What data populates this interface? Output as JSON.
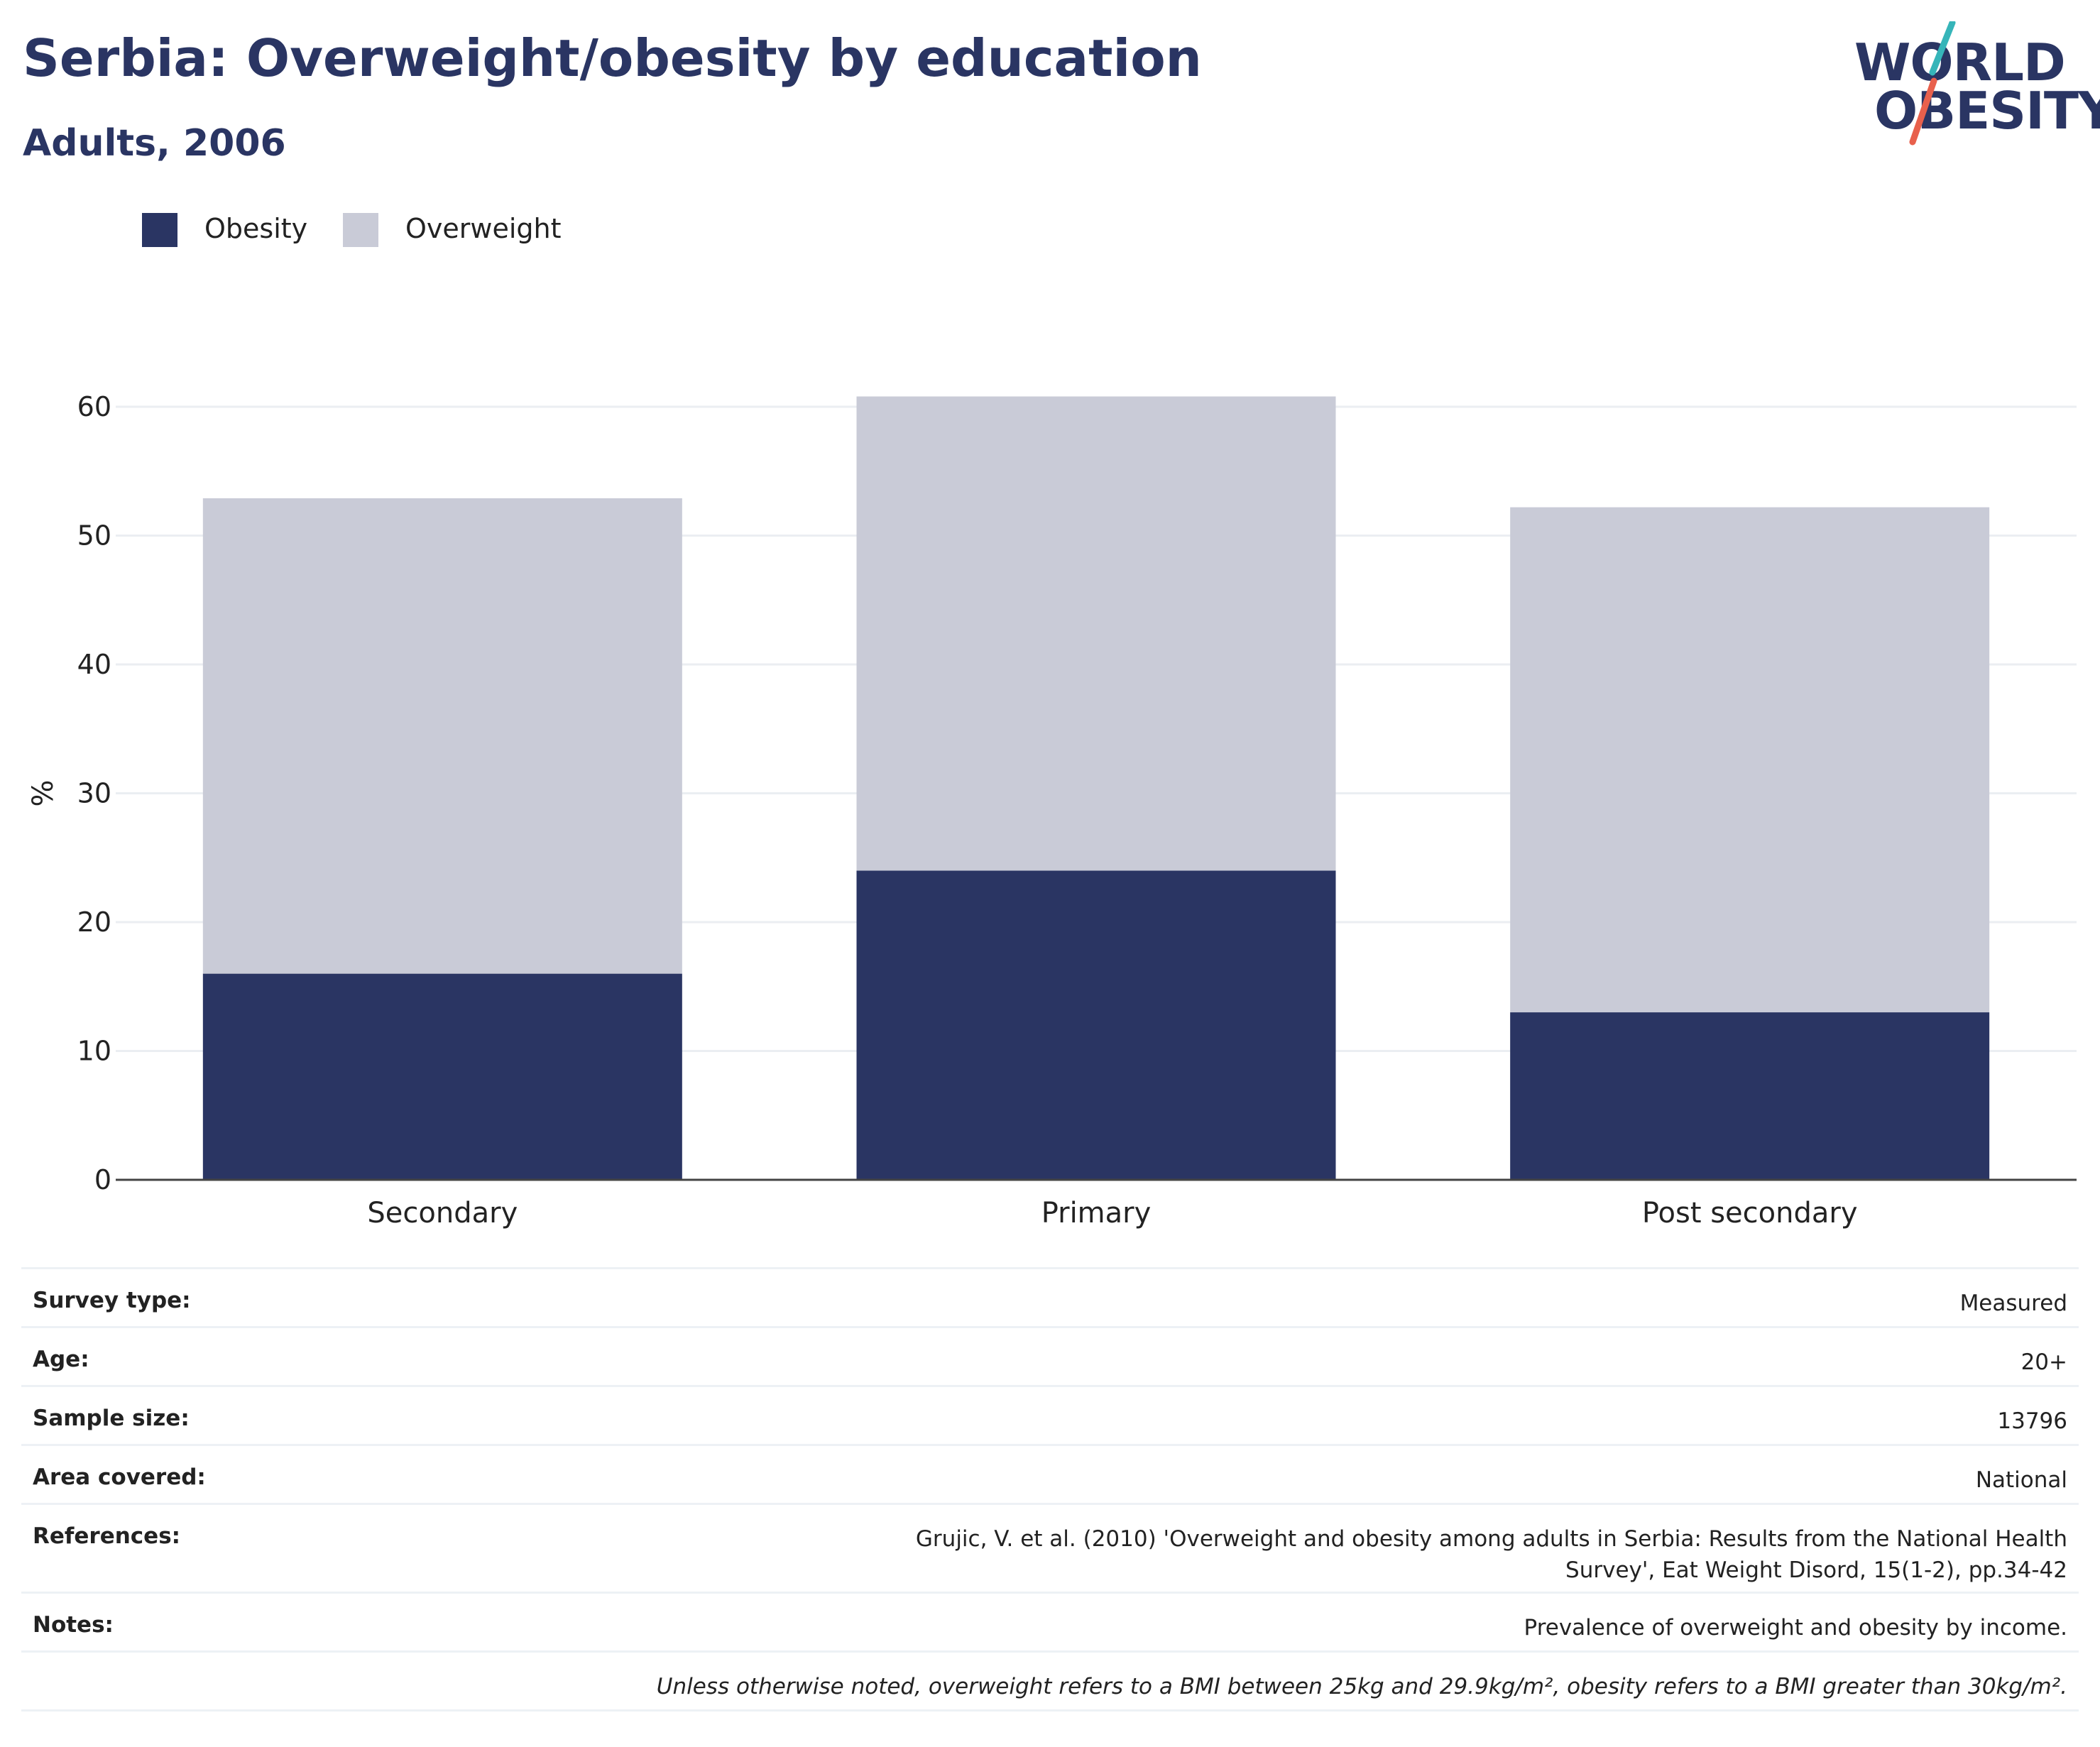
{
  "header": {
    "title": "Serbia: Overweight/obesity by education",
    "subtitle": "Adults, 2006"
  },
  "logo": {
    "line1": "WORLD",
    "line2": "OBESITY",
    "colors": {
      "text": "#2a3563",
      "slash_top": "#36b5b9",
      "slash_bottom": "#e8604c"
    }
  },
  "legend": [
    {
      "label": "Obesity",
      "color": "#2a3563"
    },
    {
      "label": "Overweight",
      "color": "#c9cbd7"
    }
  ],
  "chart_data": {
    "type": "bar",
    "stacked": true,
    "categories": [
      "Secondary",
      "Primary",
      "Post secondary"
    ],
    "series": [
      {
        "name": "Obesity",
        "color": "#2a3563",
        "values": [
          16.0,
          24.0,
          13.0
        ]
      },
      {
        "name": "Overweight",
        "color": "#c9cbd7",
        "values": [
          36.9,
          36.8,
          39.2
        ]
      }
    ],
    "totals": [
      52.9,
      60.8,
      52.2
    ],
    "ylabel": "%",
    "xlabel": "",
    "ylim": [
      0,
      65
    ],
    "yticks": [
      0,
      10,
      20,
      30,
      40,
      50,
      60
    ],
    "grid": true,
    "legend_position": "top-left"
  },
  "info": {
    "rows": [
      {
        "key": "Survey type:",
        "value": "Measured"
      },
      {
        "key": "Age:",
        "value": "20+"
      },
      {
        "key": "Sample size:",
        "value": "13796"
      },
      {
        "key": "Area covered:",
        "value": "National"
      },
      {
        "key": "References:",
        "value": "Grujic, V. et al. (2010) 'Overweight and obesity among adults in Serbia: Results from the National Health Survey', Eat Weight Disord, 15(1-2), pp.34-42"
      },
      {
        "key": "Notes:",
        "value": "Prevalence of overweight and obesity by income."
      }
    ],
    "footnote": "Unless otherwise noted, overweight refers to a BMI between 25kg and 29.9kg/m², obesity refers to a BMI greater than 30kg/m²."
  }
}
